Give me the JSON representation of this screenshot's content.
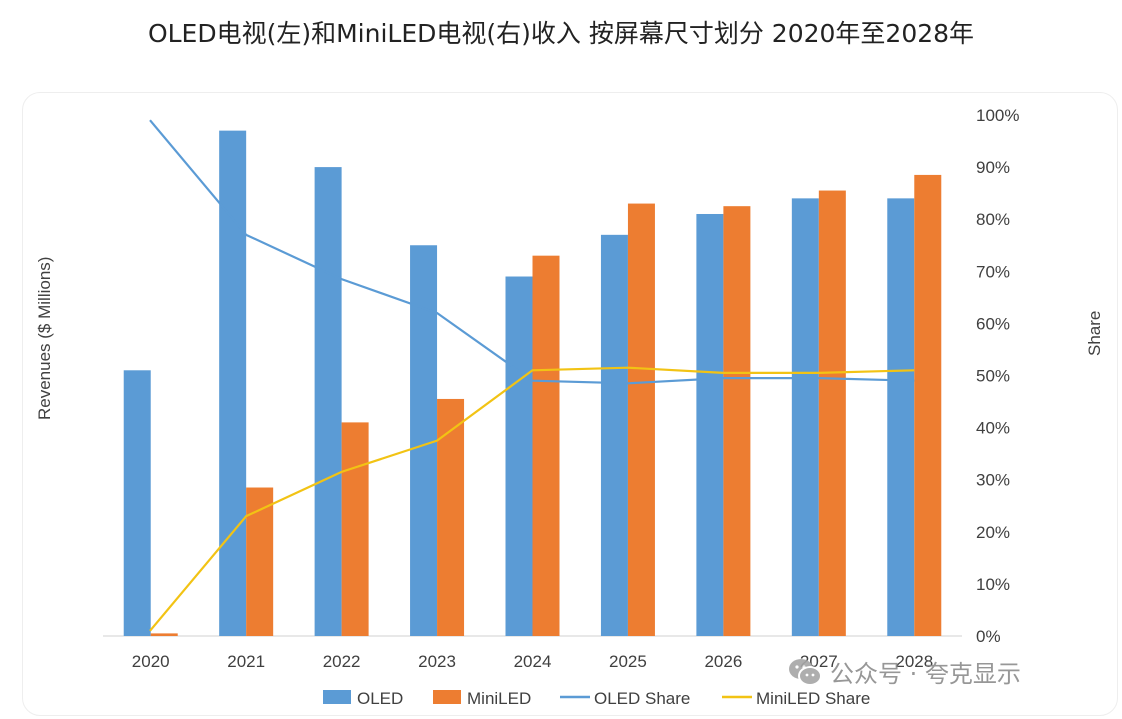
{
  "title": "OLED电视(左)和MiniLED电视(右)收入 按屏幕尺寸划分 2020年至2028年",
  "watermark": {
    "text": "公众号 · 夸克显示",
    "icon": "wechat-icon"
  },
  "chart_data": {
    "type": "bar",
    "title": "OLED电视(左)和MiniLED电视(右)收入 按屏幕尺寸划分 2020年至2028年",
    "categories": [
      "2020",
      "2021",
      "2022",
      "2023",
      "2024",
      "2025",
      "2026",
      "2027",
      "2028"
    ],
    "series": [
      {
        "name": "OLED",
        "kind": "bar",
        "axis": "left",
        "color": "#5b9bd5",
        "values": [
          51,
          97,
          90,
          75,
          69,
          77,
          81,
          84,
          84
        ]
      },
      {
        "name": "MiniLED",
        "kind": "bar",
        "axis": "left",
        "color": "#ed7d31",
        "values": [
          0.5,
          28.5,
          41,
          45.5,
          73,
          83,
          82.5,
          85.5,
          88.5
        ]
      },
      {
        "name": "OLED Share",
        "kind": "line",
        "axis": "right",
        "color": "#5b9bd5",
        "values": [
          99,
          77,
          68.5,
          62,
          49,
          48.5,
          49.5,
          49.5,
          49
        ]
      },
      {
        "name": "MiniLED Share",
        "kind": "line",
        "axis": "right",
        "color": "#f2c314",
        "values": [
          1,
          23,
          31.5,
          37.5,
          51,
          51.5,
          50.5,
          50.5,
          51
        ]
      }
    ],
    "ylabel": "Revenues ($ Millions)",
    "y2label": "Share",
    "ylim": [
      0,
      100
    ],
    "y2lim": [
      0,
      100
    ],
    "y2_ticks": [
      "0%",
      "10%",
      "20%",
      "30%",
      "40%",
      "50%",
      "60%",
      "70%",
      "80%",
      "90%",
      "100%"
    ],
    "y2_tick_values": [
      0,
      10,
      20,
      30,
      40,
      50,
      60,
      70,
      80,
      90,
      100
    ],
    "grid": false,
    "legend": "bottom",
    "legend_entries": [
      "OLED",
      "MiniLED",
      "OLED Share",
      "MiniLED Share"
    ]
  }
}
